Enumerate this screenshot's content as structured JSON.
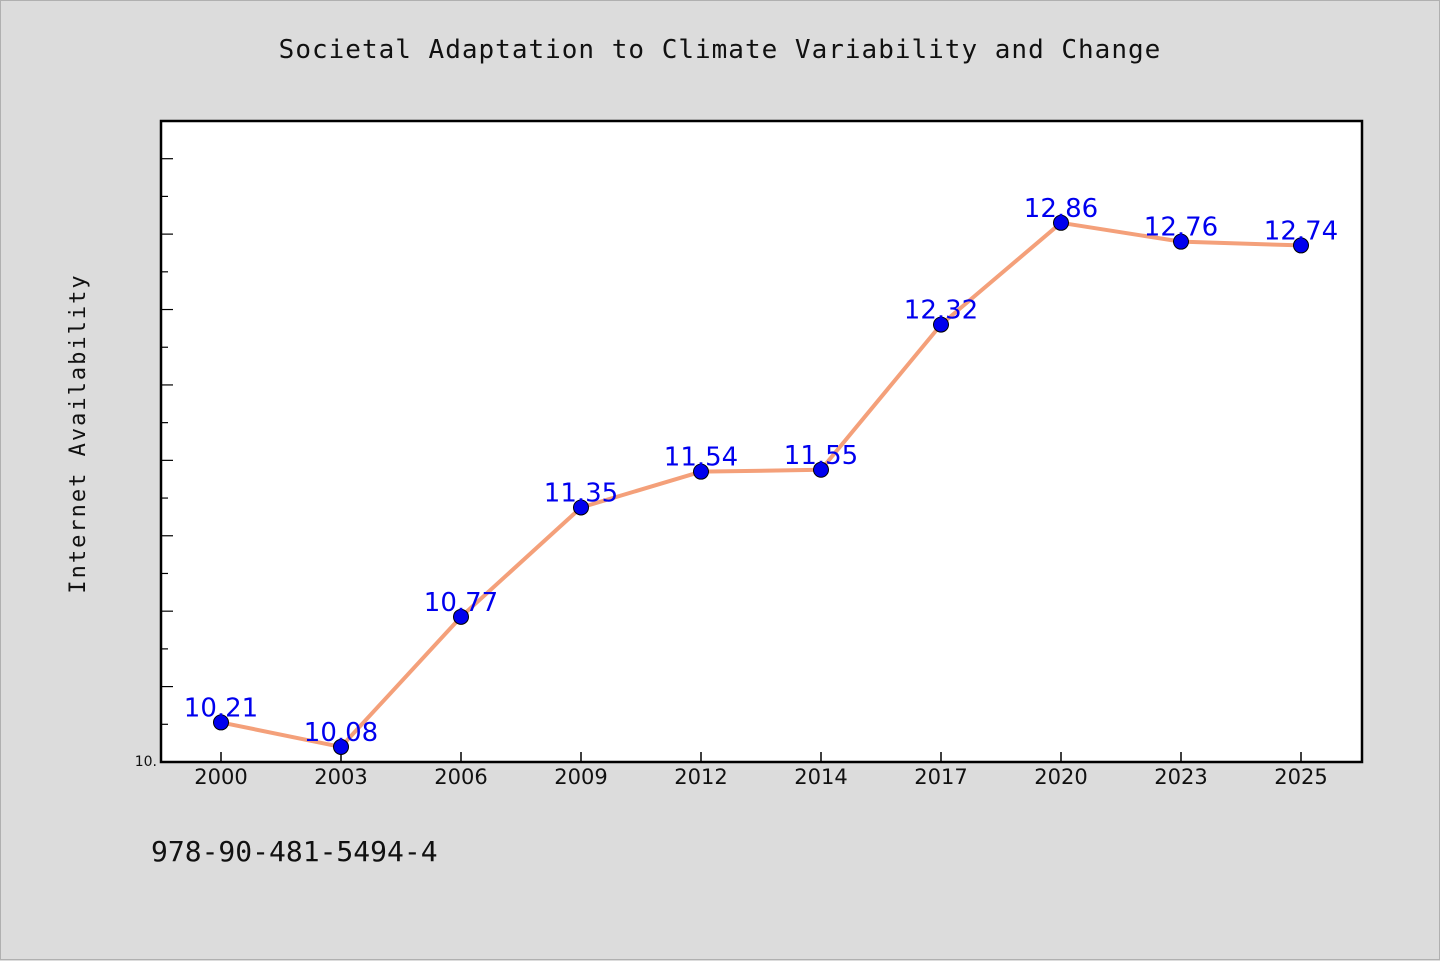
{
  "chart_data": {
    "type": "line",
    "title": "Societal Adaptation to Climate Variability and Change",
    "xlabel": "",
    "ylabel": "Internet Availability",
    "categories": [
      "2000",
      "2003",
      "2006",
      "2009",
      "2012",
      "2014",
      "2017",
      "2020",
      "2023",
      "2025"
    ],
    "series": [
      {
        "values": [
          10.21,
          10.08,
          10.77,
          11.35,
          11.54,
          11.55,
          12.32,
          12.86,
          12.76,
          12.74
        ]
      }
    ],
    "data_labels": [
      "10.21",
      "10.08",
      "10.77",
      "11.35",
      "11.54",
      "11.55",
      "12.32",
      "12.86",
      "12.76",
      "12.74"
    ],
    "ylim": [
      10.0,
      13.4
    ],
    "y_tick_labels": [
      "10."
    ],
    "grid": false,
    "legend": "none",
    "colors": {
      "line": "#f4a07a",
      "marker": "#0000ee",
      "label": "#0000ee",
      "plot_bg": "#ffffff",
      "figure_bg": "#dcdcdc"
    }
  },
  "footer": {
    "note": "978-90-481-5494-4"
  }
}
